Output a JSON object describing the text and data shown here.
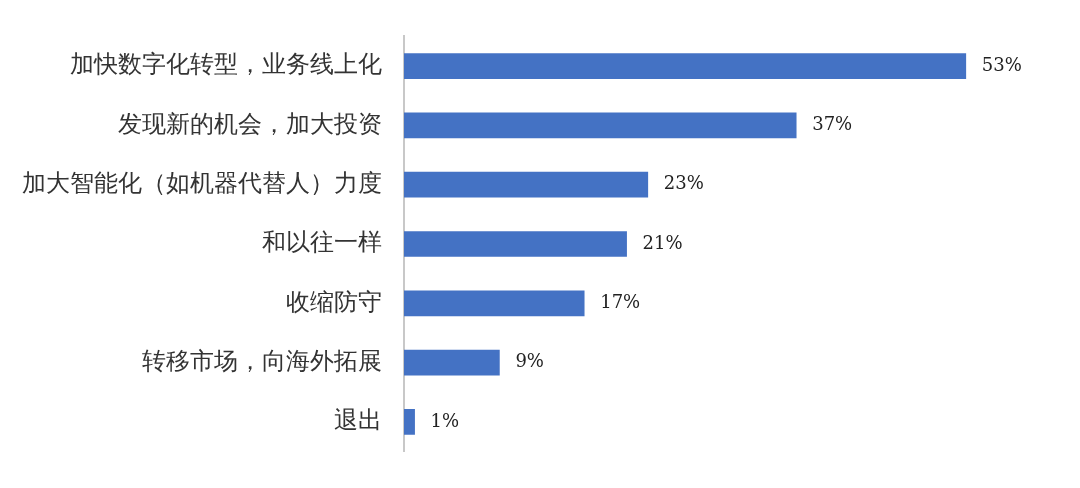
{
  "chart_data": {
    "type": "bar",
    "orientation": "horizontal",
    "categories": [
      "加快数字化转型，业务线上化",
      "发现新的机会，加大投资",
      "加大智能化（如机器代替人）力度",
      "和以往一样",
      "收缩防守",
      "转移市场，向海外拓展",
      "退出"
    ],
    "values": [
      53,
      37,
      23,
      21,
      17,
      9,
      1
    ],
    "value_labels": [
      "53%",
      "37%",
      "23%",
      "21%",
      "17%",
      "9%",
      "1%"
    ],
    "color": "#4472c4",
    "legend": false,
    "tick_labels": "y"
  }
}
